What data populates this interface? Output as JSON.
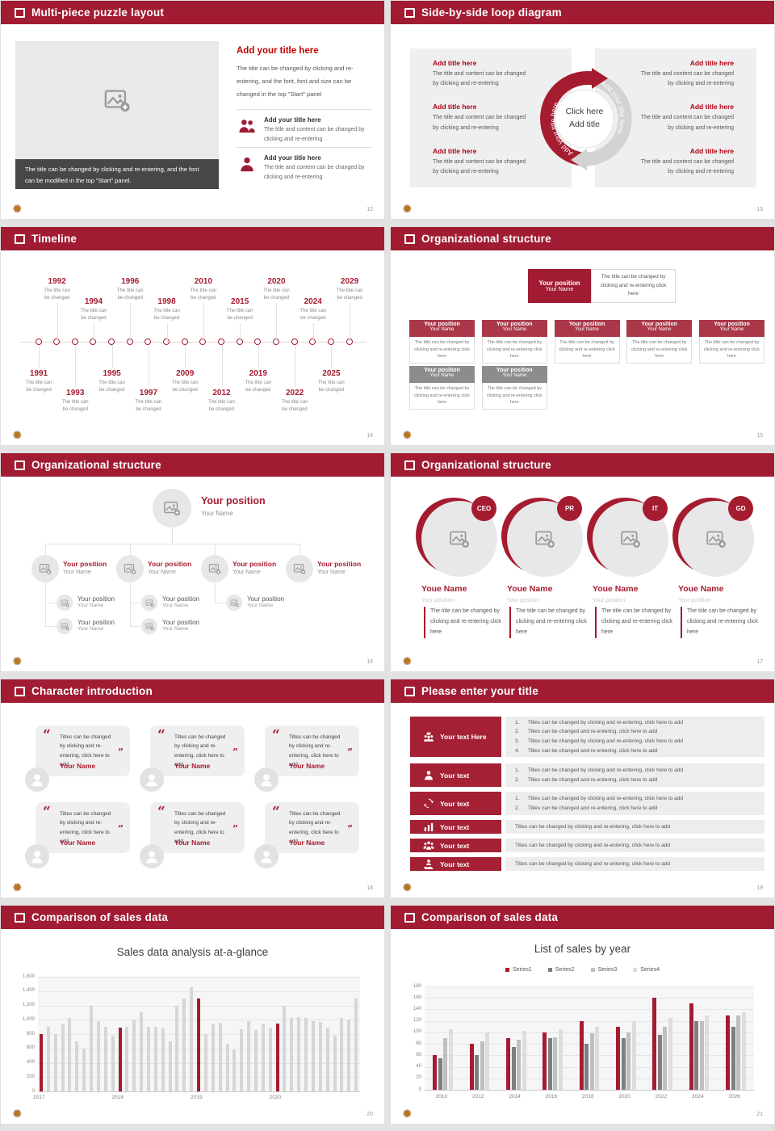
{
  "logo_glyph": "✺",
  "colors": {
    "header_red": "#a11c33",
    "accent_red": "#c00000",
    "dark_red": "#a51c30",
    "panel_gray": "#efefef",
    "caption_gray": "#474747"
  },
  "slides": [
    {
      "title": "Multi-piece puzzle layout",
      "page": "12",
      "image_caption": "The title can be changed by clicking and re-entering, and the font can be modified in the top \"Start\" panel.",
      "right": {
        "title": "Add your title here",
        "body": "The title can be changed by clicking and re-entering, and the font, font and size can be changed in the top \"Start\" panel",
        "items": [
          {
            "icon": "people",
            "title": "Add your title here",
            "body": "The title and content can be changed by clicking and re-entering"
          },
          {
            "icon": "person",
            "title": "Add your title here",
            "body": "The title and content can be changed by clicking and re-entering"
          }
        ]
      }
    },
    {
      "title": "Side-by-side loop diagram",
      "page": "13",
      "left_items": [
        {
          "title": "Add title here",
          "body": "The title and content can be changed by clicking and re-entering"
        },
        {
          "title": "Add title here",
          "body": "The title and content can be changed by clicking and re-entering"
        },
        {
          "title": "Add title here",
          "body": "The title and content can be changed by clicking and re-entering"
        }
      ],
      "right_items": [
        {
          "title": "Add title here",
          "body": "The title and content can be changed by clicking and re-entering"
        },
        {
          "title": "Add title here",
          "body": "The title and content can be changed by clicking and re-entering"
        },
        {
          "title": "Add title here",
          "body": "The title and content can be changed by clicking and re-entering"
        }
      ],
      "ring": {
        "left_arc_label": "Add your title here",
        "right_arc_label": "Add your title here",
        "center_line1": "Click here",
        "center_line2": "Add title"
      }
    },
    {
      "title": "Timeline",
      "page": "14",
      "caption_lines": [
        "The title can",
        "be changed"
      ],
      "events": [
        {
          "year": "1991",
          "tier": "below-high"
        },
        {
          "year": "1992",
          "tier": "above-high"
        },
        {
          "year": "1993",
          "tier": "below-low"
        },
        {
          "year": "1994",
          "tier": "above-low"
        },
        {
          "year": "1995",
          "tier": "below-high"
        },
        {
          "year": "1996",
          "tier": "above-high"
        },
        {
          "year": "1997",
          "tier": "below-low"
        },
        {
          "year": "1998",
          "tier": "above-low"
        },
        {
          "year": "2009",
          "tier": "below-high"
        },
        {
          "year": "2010",
          "tier": "above-high"
        },
        {
          "year": "2012",
          "tier": "below-low"
        },
        {
          "year": "2015",
          "tier": "above-low"
        },
        {
          "year": "2019",
          "tier": "below-high"
        },
        {
          "year": "2020",
          "tier": "above-high"
        },
        {
          "year": "2022",
          "tier": "below-low"
        },
        {
          "year": "2024",
          "tier": "above-low"
        },
        {
          "year": "2025",
          "tier": "below-high"
        },
        {
          "year": "2029",
          "tier": "above-high"
        }
      ]
    },
    {
      "title": "Organizational structure",
      "page": "15",
      "root": {
        "position": "Your position",
        "name": "Your Name"
      },
      "root_note": "The title can be changed by clicking and re-entering click here",
      "row1": [
        {
          "position": "Your position",
          "name": "Your Name",
          "body": "The title can be changed by clicking and re-entering click here"
        },
        {
          "position": "Your position",
          "name": "Your Name",
          "body": "The title can be changed by clicking and re-entering click here"
        },
        {
          "position": "Your position",
          "name": "Your Name",
          "body": "The title can be changed by clicking and re-entering click here"
        },
        {
          "position": "Your position",
          "name": "Your Name",
          "body": "The title can be changed by clicking and re-entering click here"
        },
        {
          "position": "Your position",
          "name": "Your Name",
          "body": "The title can be changed by clicking and re-entering click here"
        }
      ],
      "row2": [
        {
          "position": "Your position",
          "name": "Your Name",
          "body": "The title can be changed by clicking and re-entering click here"
        },
        {
          "position": "Your position",
          "name": "Your Name",
          "body": "The title can be changed by clicking and re-entering click here"
        }
      ]
    },
    {
      "title": "Organizational structure",
      "page": "16",
      "root": {
        "position": "Your position",
        "name": "Your Name"
      },
      "branches": [
        {
          "position": "Your position",
          "name": "Your Name",
          "subs": [
            {
              "position": "Your position",
              "name": "Your Name"
            },
            {
              "position": "Your position",
              "name": "Your Name"
            }
          ]
        },
        {
          "position": "Your position",
          "name": "Your Name",
          "subs": [
            {
              "position": "Your position",
              "name": "Your Name"
            },
            {
              "position": "Your position",
              "name": "Your Name"
            }
          ]
        },
        {
          "position": "Your position",
          "name": "Your Name",
          "subs": [
            {
              "position": "Your position",
              "name": "Your Name"
            }
          ]
        },
        {
          "position": "Your position",
          "name": "Your Name",
          "subs": []
        }
      ]
    },
    {
      "title": "Organizational structure",
      "page": "17",
      "members": [
        {
          "badge": "CEO",
          "name": "Youe Name",
          "role": "Your position",
          "body": "The title can be changed by clicking and re-entering click here"
        },
        {
          "badge": "PR",
          "name": "Youe Name",
          "role": "Your position",
          "body": "The title can be changed by clicking and re-entering click here"
        },
        {
          "badge": "IT",
          "name": "Youe Name",
          "role": "Your position",
          "body": "The title can be changed by clicking and re-entering click here"
        },
        {
          "badge": "GD",
          "name": "Youe Name",
          "role": "Your position",
          "body": "The title can be changed by clicking and re-entering click here"
        }
      ]
    },
    {
      "title": "Character introduction",
      "page": "18",
      "open_quote": "“",
      "close_quote": "”",
      "cards": [
        {
          "quote": "Titles can be changed by clicking and re-entering, click here to add",
          "name": "Your Name"
        },
        {
          "quote": "Titles can be changed by clicking and re-entering, click here to add",
          "name": "Your Name"
        },
        {
          "quote": "Titles can be changed by clicking and re-entering, click here to add",
          "name": "Your Name"
        },
        {
          "quote": "Titles can be changed by clicking and re-entering, click here to add",
          "name": "Your Name"
        },
        {
          "quote": "Titles can be changed by clicking and re-entering, click here to add",
          "name": "Your Name"
        },
        {
          "quote": "Titles can be changed by clicking and re-entering, click here to add",
          "name": "Your Name"
        }
      ]
    },
    {
      "title": "Please enter your title",
      "page": "19",
      "rows": [
        {
          "icon": "meeting",
          "label": "Your text Here",
          "numbered": true,
          "lines": [
            "Titles can be changed by clicking and re-entering, click here to add",
            "Titles can be changed and re-entering, click here to add",
            "Titles can be changed by clicking and re-entering, click here to add",
            "Titles can be changed and re-entering, click here to add"
          ]
        },
        {
          "icon": "person",
          "label": "Your text",
          "numbered": true,
          "lines": [
            "Titles can be changed by clicking and re-entering, click here to add",
            "Titles can be changed and re-entering, click here to add"
          ]
        },
        {
          "icon": "refresh",
          "label": "Your text",
          "numbered": true,
          "lines": [
            "Titles can be changed by clicking and re-entering, click here to add",
            "Titles can be changed and re-entering, click here to add"
          ]
        },
        {
          "icon": "chart",
          "label": "Your text",
          "numbered": false,
          "lines": [
            "Titles can be changed by clicking and re-entering, click here to add"
          ]
        },
        {
          "icon": "group",
          "label": "Your text",
          "numbered": false,
          "lines": [
            "Titles can be changed by clicking and re-entering, click here to add"
          ]
        },
        {
          "icon": "service",
          "label": "Your text",
          "numbered": false,
          "lines": [
            "Titles can be changed by clicking and re-entering, click here to add"
          ]
        }
      ]
    },
    {
      "title": "Comparison of sales data",
      "page": "20",
      "chart_title": "Sales data analysis at-a-glance"
    },
    {
      "title": "Comparison of sales data",
      "page": "21",
      "chart_title": "List of sales by year"
    }
  ],
  "chart_data": [
    {
      "type": "bar",
      "title": "Sales data analysis at-a-glance",
      "values": [
        800,
        900,
        800,
        950,
        1020,
        700,
        600,
        1200,
        980,
        900,
        780,
        890,
        900,
        1000,
        1100,
        900,
        900,
        880,
        700,
        1200,
        1300,
        1450,
        1300,
        800,
        950,
        960,
        670,
        590,
        870,
        980,
        860,
        950,
        890,
        950,
        1200,
        1020,
        1040,
        1020,
        980,
        970,
        890,
        780,
        1020,
        1000,
        1300
      ],
      "highlight_indices": [
        0,
        11,
        22,
        33
      ],
      "x_tick_labels": [
        {
          "label": "2017",
          "index": 0
        },
        {
          "label": "2018",
          "index": 11
        },
        {
          "label": "2019",
          "index": 22
        },
        {
          "label": "2020",
          "index": 33
        }
      ],
      "y_ticks": [
        "0",
        "200",
        "400",
        "600",
        "800",
        "1,000",
        "1,200",
        "1,400",
        "1,600"
      ],
      "ylim": [
        0,
        1600
      ],
      "bar_color": "#d6d6d6",
      "highlight_color": "#a51c30",
      "grid": true,
      "legend": false
    },
    {
      "type": "grouped-bar",
      "title": "List of sales by year",
      "categories": [
        "2010",
        "2012",
        "2014",
        "2016",
        "2018",
        "2020",
        "2022",
        "2024",
        "2026"
      ],
      "series": [
        {
          "name": "Series1",
          "color": "#a51c30",
          "values": [
            60,
            80,
            90,
            100,
            120,
            110,
            160,
            150,
            130
          ]
        },
        {
          "name": "Series2",
          "color": "#7f7f7f",
          "values": [
            55,
            60,
            75,
            90,
            80,
            90,
            95,
            120,
            110
          ]
        },
        {
          "name": "Series3",
          "color": "#bfbfbf",
          "values": [
            90,
            85,
            87,
            92,
            98,
            100,
            110,
            120,
            130
          ]
        },
        {
          "name": "Series4",
          "color": "#dddddd",
          "values": [
            105,
            100,
            102,
            105,
            110,
            120,
            125,
            130,
            135
          ]
        }
      ],
      "y_ticks": [
        "0",
        "20",
        "40",
        "60",
        "80",
        "100",
        "120",
        "140",
        "160",
        "180"
      ],
      "ylim": [
        0,
        180
      ],
      "legend_position": "top",
      "grid": true
    }
  ]
}
